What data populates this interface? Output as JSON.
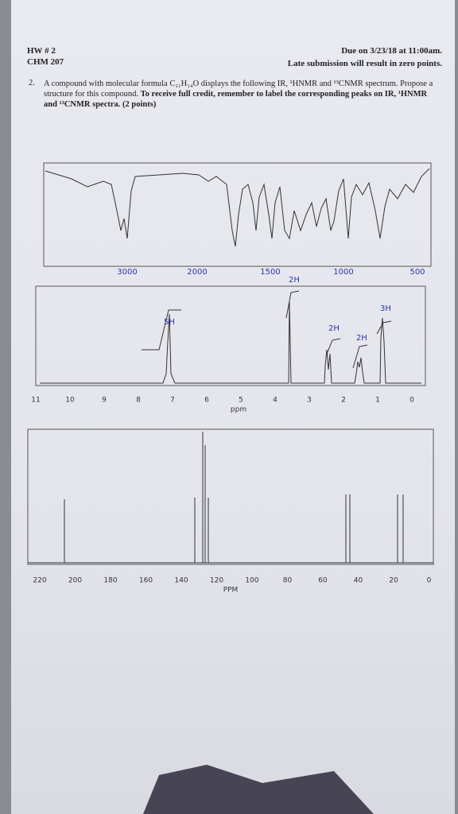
{
  "header": {
    "course_left": [
      "HW # 2",
      "CHM 207"
    ],
    "due": "Due on 3/23/18 at 11:00am.",
    "late": "Late submission will result in zero points."
  },
  "question": {
    "number": "2.",
    "text": "A compound with molecular formula C₁₁H₁₄O displays the following IR, ¹HNMR and ¹³CNMR spectrum. Propose a structure for this compound.",
    "instruction": "To receive full credit, remember to label the corresponding peaks on IR, ¹HNMR and ¹³CNMR spectra. (2 points)"
  },
  "ir": {
    "ticks": [
      3000,
      2000,
      1500,
      1000,
      500
    ]
  },
  "hnmr": {
    "ticks": [
      11,
      10,
      9,
      8,
      7,
      6,
      5,
      4,
      3,
      2,
      1,
      0
    ],
    "xlabel": "ppm",
    "annotations": [
      "5H",
      "2H",
      "2H",
      "2H",
      "3H"
    ]
  },
  "cnmr": {
    "ticks": [
      220,
      200,
      180,
      160,
      140,
      120,
      100,
      80,
      60,
      40,
      20,
      0
    ],
    "xlabel": "PPM"
  }
}
